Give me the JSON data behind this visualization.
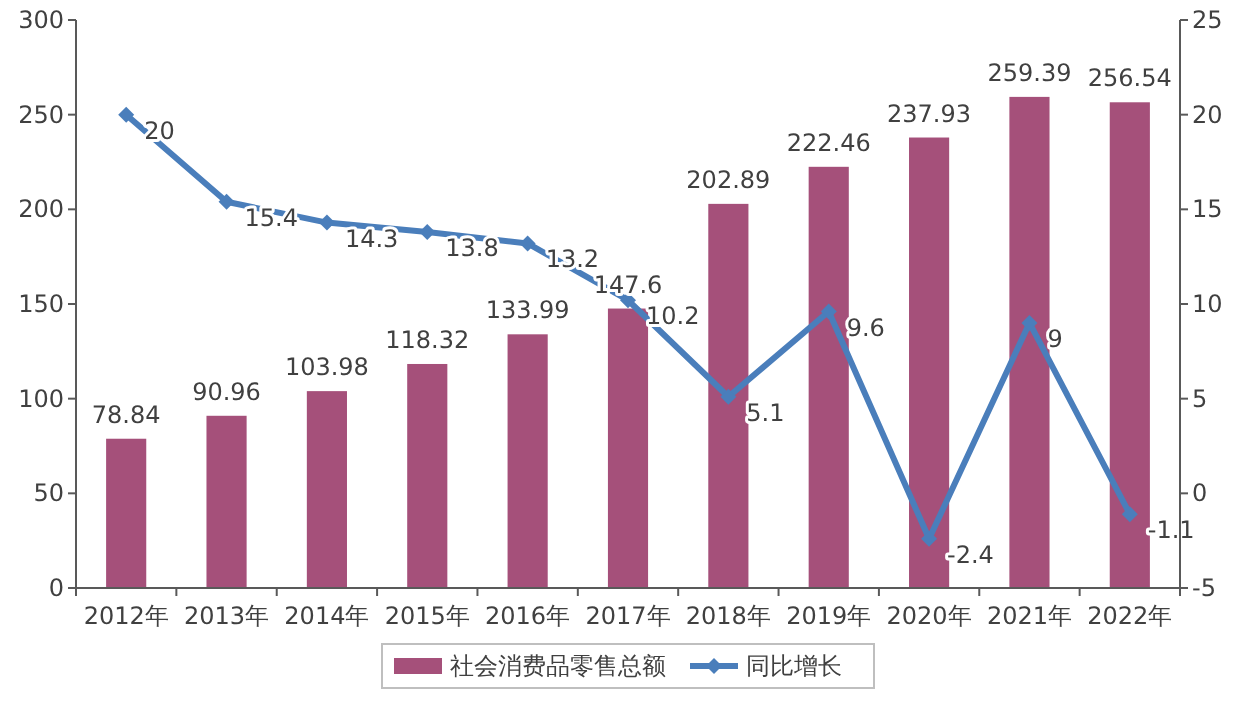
{
  "chart_data": {
    "type": "bar",
    "categories": [
      "2012年",
      "2013年",
      "2014年",
      "2015年",
      "2016年",
      "2017年",
      "2018年",
      "2019年",
      "2020年",
      "2021年",
      "2022年"
    ],
    "series": [
      {
        "name": "社会消费品零售总额",
        "color": "#a5507a",
        "values": [
          78.84,
          90.96,
          103.98,
          118.32,
          133.99,
          147.6,
          202.89,
          222.46,
          237.93,
          259.39,
          256.54
        ]
      },
      {
        "name": "同比增长",
        "type": "line",
        "axis": "y2",
        "color": "#4a7ebb",
        "marker": "diamond",
        "values": [
          20,
          15.4,
          14.3,
          13.8,
          13.2,
          10.2,
          5.1,
          9.6,
          -2.4,
          9,
          -1.1
        ]
      }
    ],
    "ylim": [
      0,
      300
    ],
    "yticks": [
      0,
      50,
      100,
      150,
      200,
      250,
      300
    ],
    "y2lim": [
      -5,
      25
    ],
    "y2ticks": [
      -5,
      0,
      5,
      10,
      15,
      20,
      25
    ],
    "data_labels": true,
    "legend": "bottom",
    "grid": false
  }
}
